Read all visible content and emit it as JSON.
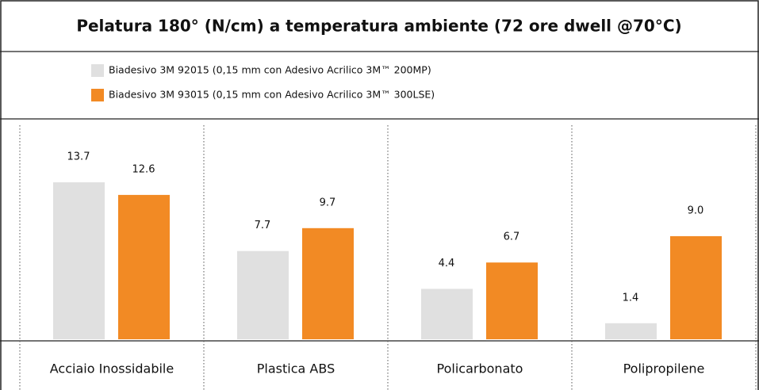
{
  "chart_data": {
    "type": "bar",
    "title": "Pelatura 180° (N/cm) a temperatura ambiente (72 ore dwell @70°C)",
    "categories": [
      "Acciaio Inossidabile",
      "Plastica ABS",
      "Policarbonato",
      "Polipropilene"
    ],
    "series": [
      {
        "name": "Biadesivo 3M 92015 (0,15 mm con Adesivo Acrilico 3M™ 200MP)",
        "color": "#e0e0e0",
        "values": [
          13.7,
          7.7,
          4.4,
          1.4
        ],
        "value_labels": [
          "13.7",
          "7.7",
          "4.4",
          "1.4"
        ]
      },
      {
        "name": "Biadesivo 3M 93015 (0,15 mm con Adesivo Acrilico 3M™ 300LSE)",
        "color": "#f28a24",
        "values": [
          12.6,
          9.7,
          6.7,
          9.0
        ],
        "value_labels": [
          "12.6",
          "9.7",
          "6.7",
          "9.0"
        ]
      }
    ]
  }
}
